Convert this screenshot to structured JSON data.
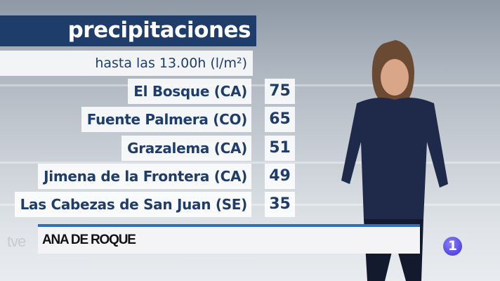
{
  "graphic": {
    "title": "precipitaciones",
    "subtitle": "hasta las 13.00h (l/m²)",
    "rows": [
      {
        "name": "El Bosque (CA)",
        "value": "75"
      },
      {
        "name": "Fuente Palmera (CO)",
        "value": "65"
      },
      {
        "name": "Grazalema (CA)",
        "value": "51"
      },
      {
        "name": "Jimena de la Frontera (CA)",
        "value": "49"
      },
      {
        "name": "Las Cabezas de San Juan (SE)",
        "value": "35"
      }
    ]
  },
  "lower_third": {
    "presenter_name": "ANA DE ROQUE"
  },
  "branding": {
    "channel_logo_text": "tve",
    "channel_number": "1"
  },
  "colors": {
    "title_bg": "#1f3d6b",
    "text": "#1f3d6b",
    "accent_line": "#2a6fc4"
  }
}
